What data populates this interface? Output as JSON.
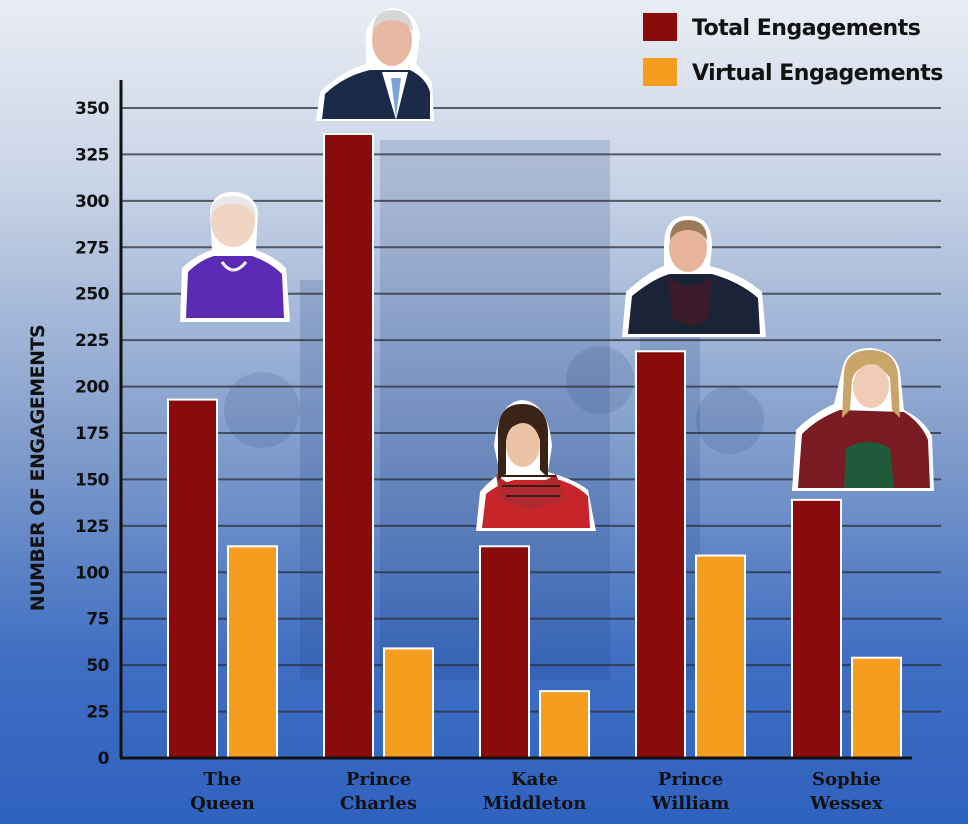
{
  "chart_data": {
    "type": "bar",
    "categories": [
      [
        "The",
        "Queen"
      ],
      [
        "Prince",
        "Charles"
      ],
      [
        "Kate",
        "Middleton"
      ],
      [
        "Prince",
        "William"
      ],
      [
        "Sophie",
        "Wessex"
      ]
    ],
    "series": [
      {
        "name": "Total Engagements",
        "color": "#8a0b0b",
        "values": [
          193,
          336,
          114,
          219,
          139
        ]
      },
      {
        "name": "Virtual Engagements",
        "color": "#f59d1f",
        "values": [
          114,
          59,
          36,
          109,
          54
        ]
      }
    ],
    "title": "",
    "xlabel": "",
    "ylabel": "NUMBER OF ENGAGEMENTS",
    "ylim": [
      0,
      350
    ],
    "yticks": [
      0,
      25,
      50,
      75,
      100,
      125,
      150,
      175,
      200,
      225,
      250,
      275,
      300,
      325,
      350
    ],
    "grid": true,
    "legend_position": "top-right",
    "portraits": [
      "queen-portrait",
      "prince-charles-portrait",
      "kate-middleton-portrait",
      "prince-william-portrait",
      "sophie-wessex-portrait"
    ]
  }
}
